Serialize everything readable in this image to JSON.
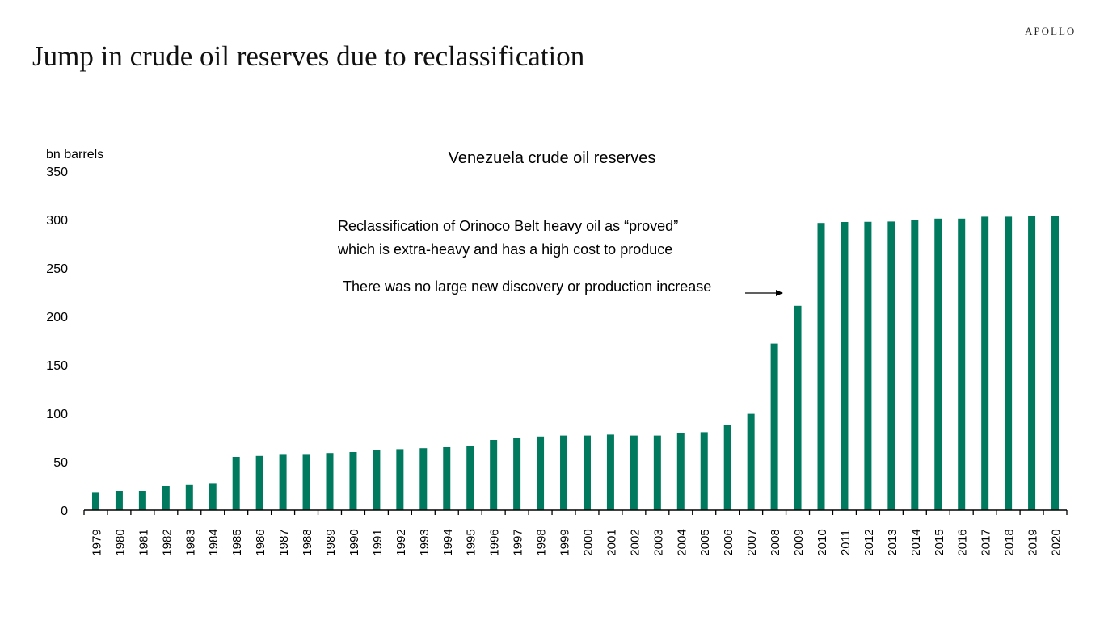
{
  "logo": "APOLLO",
  "page_title": "Jump in crude oil reserves due to reclassification",
  "chart_data": {
    "type": "bar",
    "title": "Venezuela crude oil reserves",
    "ylabel": "bn barrels",
    "xlabel": "",
    "ylim": [
      0,
      350
    ],
    "yticks": [
      0,
      50,
      100,
      150,
      200,
      250,
      300,
      350
    ],
    "grid": false,
    "bar_color": "#007A5E",
    "categories": [
      "1979",
      "1980",
      "1981",
      "1982",
      "1983",
      "1984",
      "1985",
      "1986",
      "1987",
      "1988",
      "1989",
      "1990",
      "1991",
      "1992",
      "1993",
      "1994",
      "1995",
      "1996",
      "1997",
      "1998",
      "1999",
      "2000",
      "2001",
      "2002",
      "2003",
      "2004",
      "2005",
      "2006",
      "2007",
      "2008",
      "2009",
      "2010",
      "2011",
      "2012",
      "2013",
      "2014",
      "2015",
      "2016",
      "2017",
      "2018",
      "2019",
      "2020"
    ],
    "values": [
      18,
      20,
      20,
      25,
      26,
      28,
      55,
      56,
      58,
      58,
      59,
      60,
      62.5,
      63,
      64,
      65,
      66.5,
      72.5,
      75,
      76,
      77,
      77,
      78,
      77,
      77,
      80,
      80.5,
      87.5,
      99.5,
      172,
      211,
      296.5,
      297.5,
      297.7,
      298,
      300,
      301,
      301,
      303,
      303,
      304,
      304
    ],
    "annotations": [
      "Reclassification of Orinoco Belt heavy oil as “proved”",
      "which is extra-heavy and has a high cost to produce",
      "There was no large new discovery or production increase"
    ]
  }
}
